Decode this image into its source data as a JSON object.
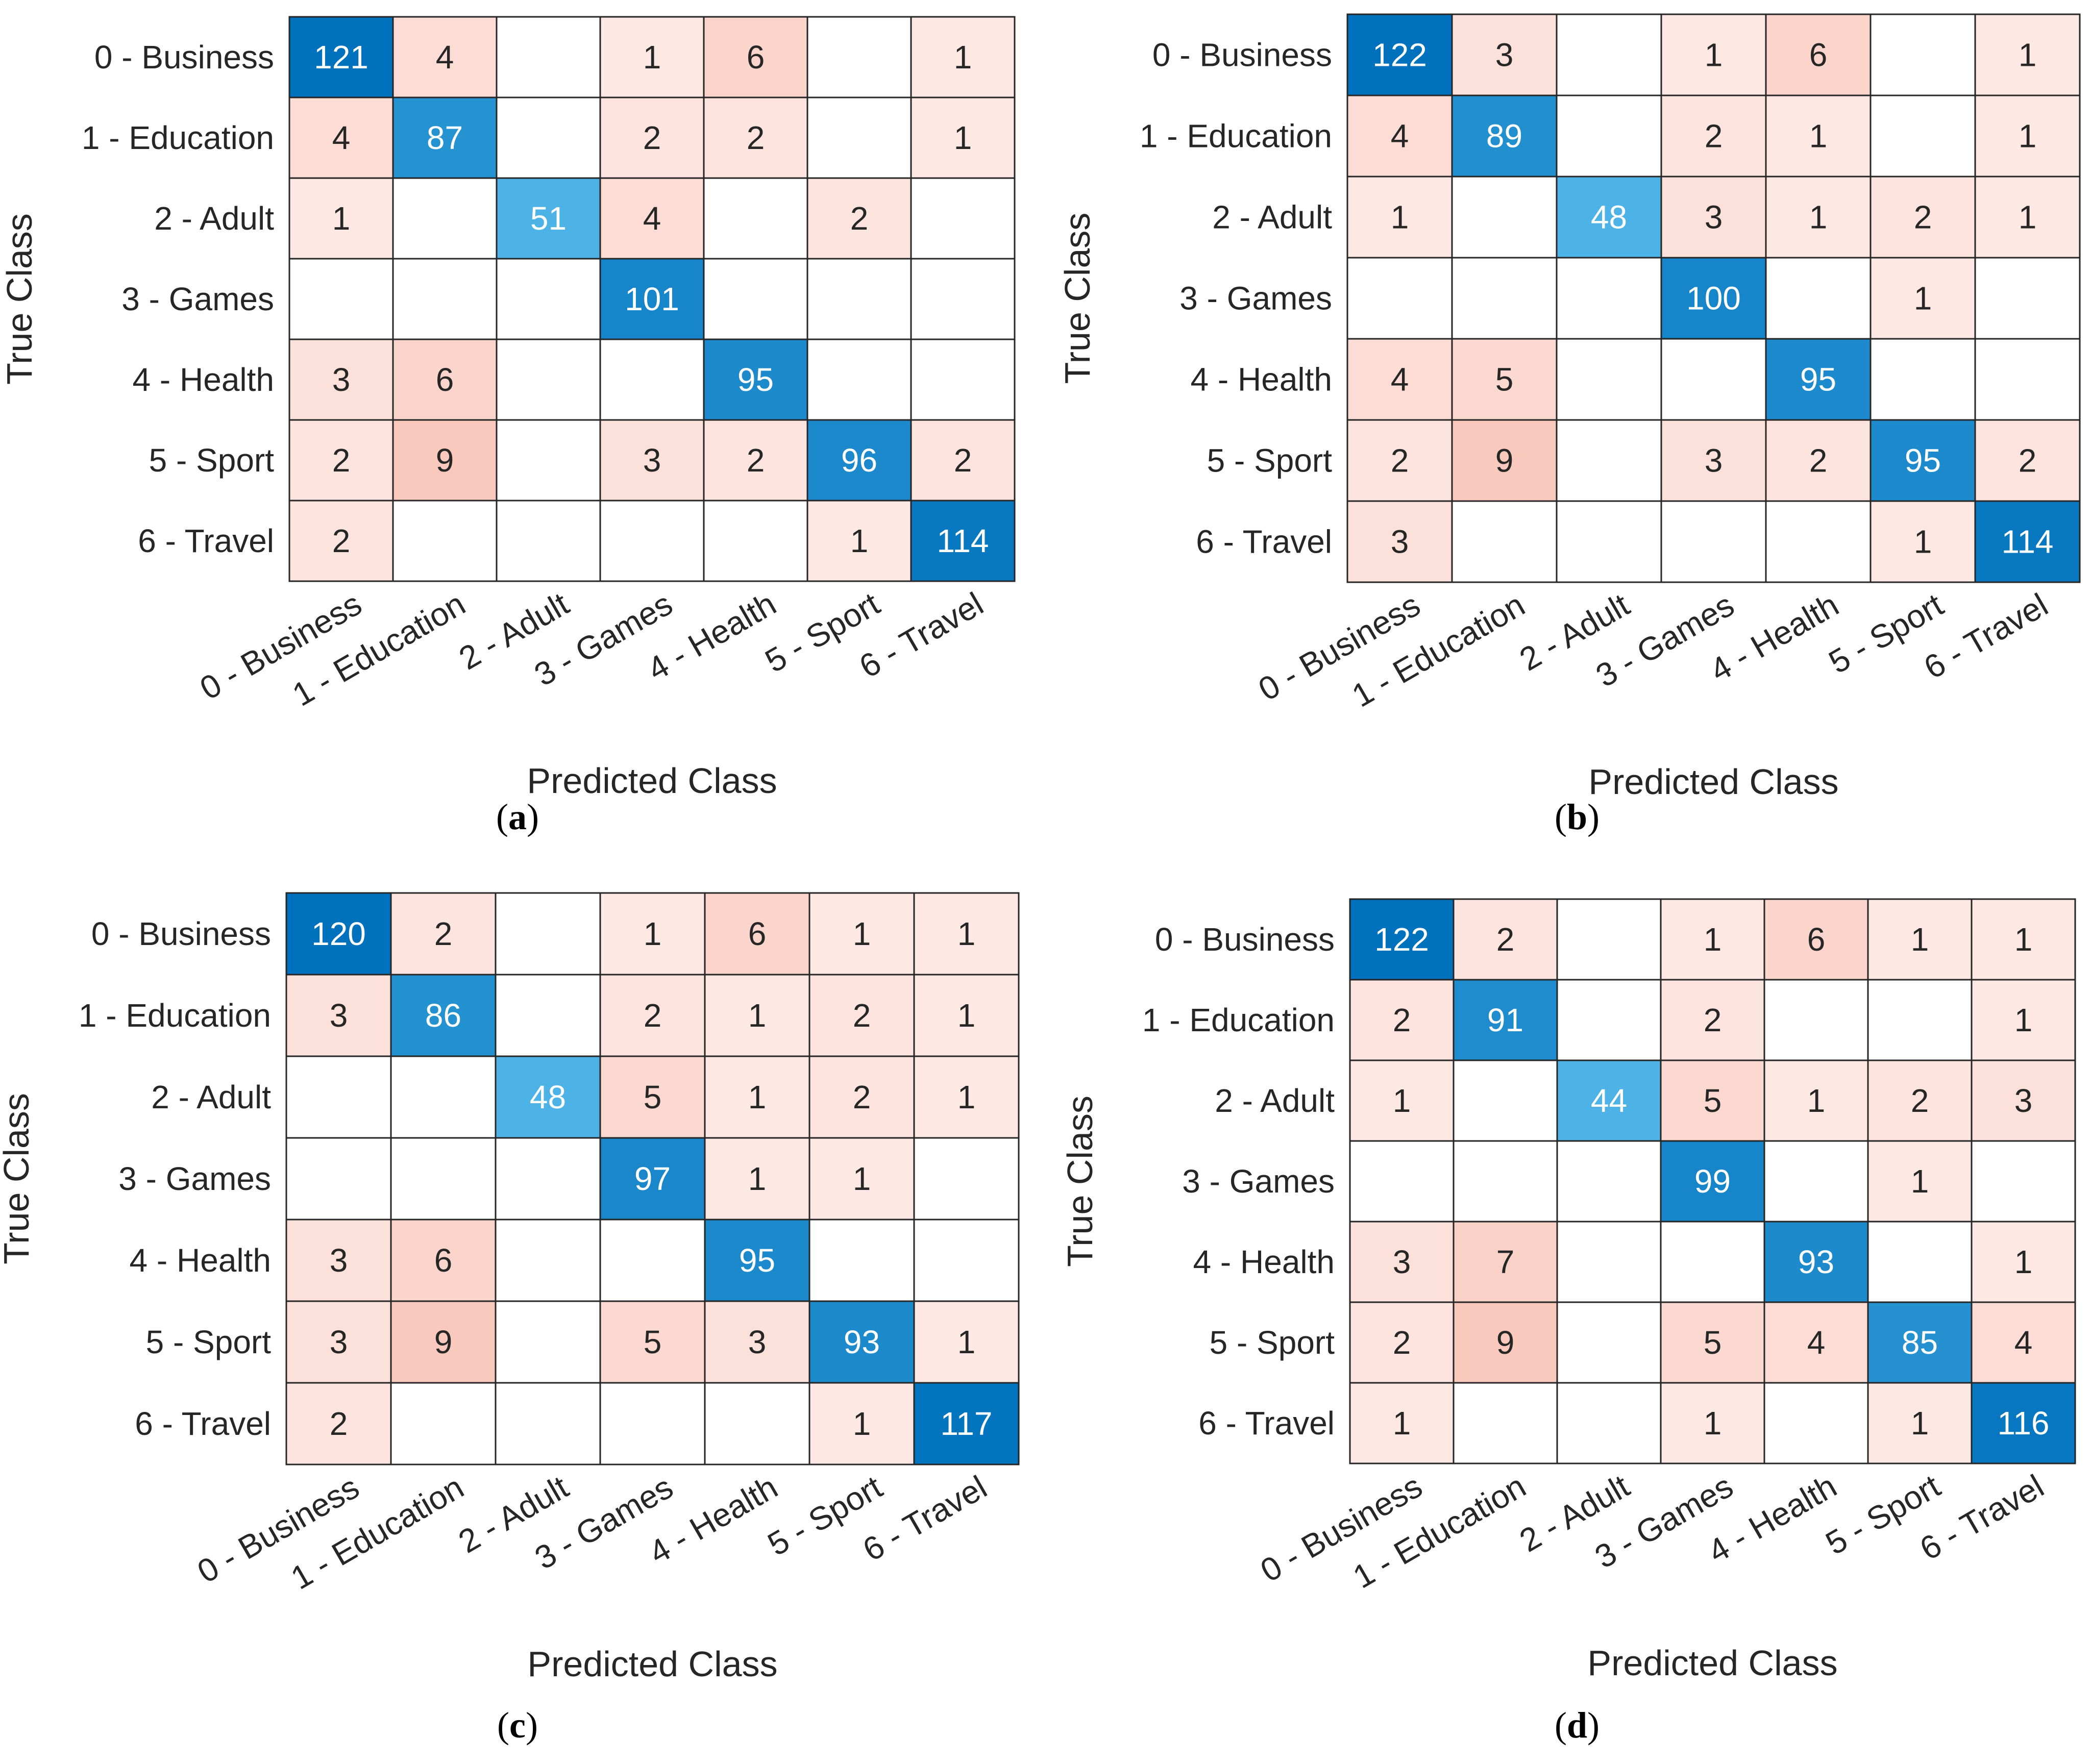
{
  "chart_data": [
    {
      "type": "heatmap",
      "caption_letter": "a",
      "xlabel": "Predicted Class",
      "ylabel": "True Class",
      "categories": [
        "0 - Business",
        "1 - Education",
        "2 - Adult",
        "3 - Games",
        "4 - Health",
        "5 - Sport",
        "6 - Travel"
      ],
      "matrix": [
        [
          121,
          4,
          null,
          1,
          6,
          null,
          1
        ],
        [
          4,
          87,
          null,
          2,
          2,
          null,
          1
        ],
        [
          1,
          null,
          51,
          4,
          null,
          2,
          null
        ],
        [
          null,
          null,
          null,
          101,
          null,
          null,
          null
        ],
        [
          3,
          6,
          null,
          null,
          95,
          null,
          null
        ],
        [
          2,
          9,
          null,
          3,
          2,
          96,
          2
        ],
        [
          2,
          null,
          null,
          null,
          null,
          1,
          114
        ]
      ]
    },
    {
      "type": "heatmap",
      "caption_letter": "b",
      "xlabel": "Predicted Class",
      "ylabel": "True Class",
      "categories": [
        "0 - Business",
        "1 - Education",
        "2 - Adult",
        "3 - Games",
        "4 - Health",
        "5 - Sport",
        "6 - Travel"
      ],
      "matrix": [
        [
          122,
          3,
          null,
          1,
          6,
          null,
          1
        ],
        [
          4,
          89,
          null,
          2,
          1,
          null,
          1
        ],
        [
          1,
          null,
          48,
          3,
          1,
          2,
          1
        ],
        [
          null,
          null,
          null,
          100,
          null,
          1,
          null
        ],
        [
          4,
          5,
          null,
          null,
          95,
          null,
          null
        ],
        [
          2,
          9,
          null,
          3,
          2,
          95,
          2
        ],
        [
          3,
          null,
          null,
          null,
          null,
          1,
          114
        ]
      ]
    },
    {
      "type": "heatmap",
      "caption_letter": "c",
      "xlabel": "Predicted Class",
      "ylabel": "True Class",
      "categories": [
        "0 - Business",
        "1 - Education",
        "2 - Adult",
        "3 - Games",
        "4 - Health",
        "5 - Sport",
        "6 - Travel"
      ],
      "matrix": [
        [
          120,
          2,
          null,
          1,
          6,
          1,
          1
        ],
        [
          3,
          86,
          null,
          2,
          1,
          2,
          1
        ],
        [
          null,
          null,
          48,
          5,
          1,
          2,
          1
        ],
        [
          null,
          null,
          null,
          97,
          1,
          1,
          null
        ],
        [
          3,
          6,
          null,
          null,
          95,
          null,
          null
        ],
        [
          3,
          9,
          null,
          5,
          3,
          93,
          1
        ],
        [
          2,
          null,
          null,
          null,
          null,
          1,
          117
        ]
      ]
    },
    {
      "type": "heatmap",
      "caption_letter": "d",
      "xlabel": "Predicted Class",
      "ylabel": "True Class",
      "categories": [
        "0 - Business",
        "1 - Education",
        "2 - Adult",
        "3 - Games",
        "4 - Health",
        "5 - Sport",
        "6 - Travel"
      ],
      "matrix": [
        [
          122,
          2,
          null,
          1,
          6,
          1,
          1
        ],
        [
          2,
          91,
          null,
          2,
          null,
          null,
          1
        ],
        [
          1,
          null,
          44,
          5,
          1,
          2,
          3
        ],
        [
          null,
          null,
          null,
          99,
          null,
          1,
          null
        ],
        [
          3,
          7,
          null,
          null,
          93,
          null,
          1
        ],
        [
          2,
          9,
          null,
          5,
          4,
          85,
          4
        ],
        [
          1,
          null,
          null,
          1,
          null,
          1,
          116
        ]
      ]
    }
  ],
  "colors": {
    "diag_max": "#0072bd",
    "diag_min": "#4db3e6",
    "offdiag_light": "#fde8e3",
    "offdiag_dark": "#f9c9bd",
    "grid": "#262626",
    "text_dark": "#262626",
    "text_light": "#ffffff"
  }
}
